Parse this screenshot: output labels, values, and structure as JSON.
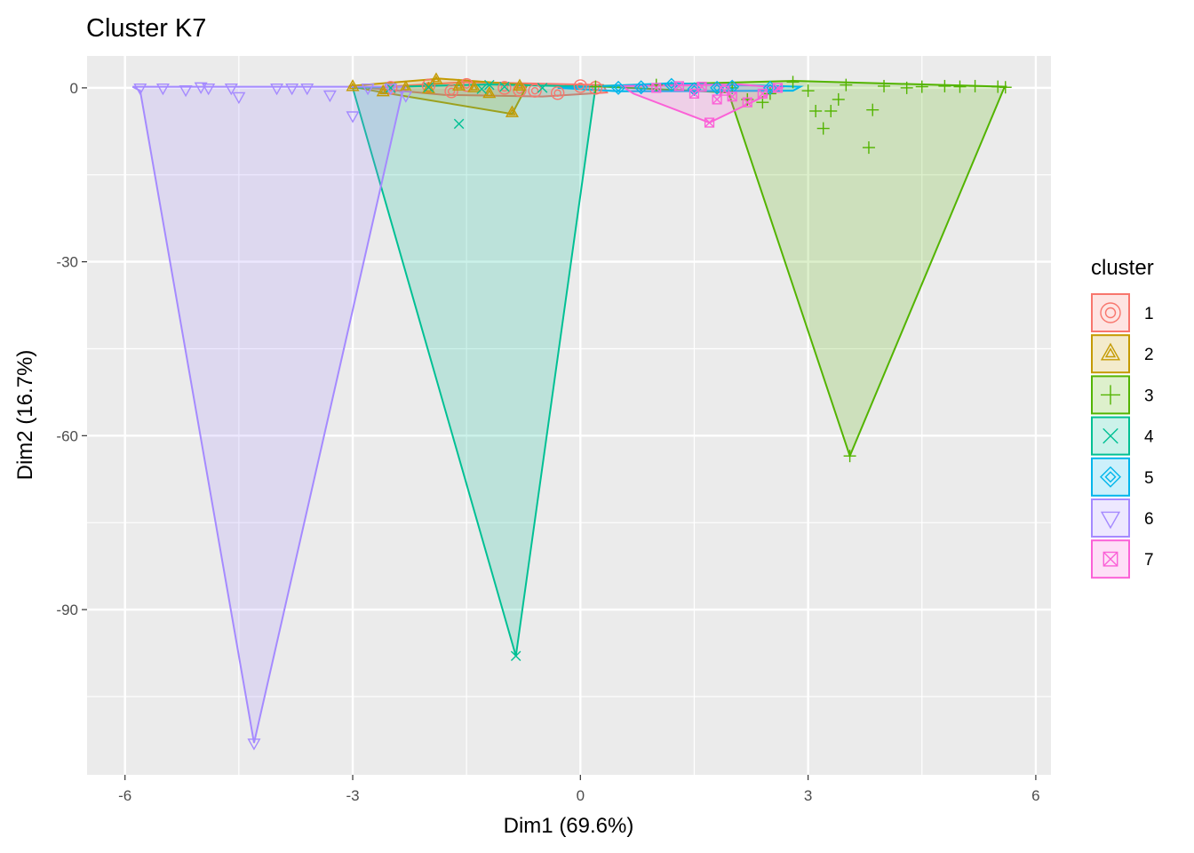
{
  "chart_data": {
    "type": "scatter",
    "title": "Cluster K7",
    "xlabel": "Dim1 (69.6%)",
    "ylabel": "Dim2 (16.7%)",
    "xlim": [
      -6.5,
      6.2
    ],
    "ylim": [
      -118.5,
      5.5
    ],
    "x_ticks": [
      -6,
      -3,
      0,
      3,
      6
    ],
    "x_tick_labels": [
      "-6",
      "-3",
      "0",
      "3",
      "6"
    ],
    "y_ticks": [
      0,
      -30,
      -60,
      -90
    ],
    "y_tick_labels": [
      "0",
      "-30",
      "-60",
      "-90"
    ],
    "grid": true,
    "legend": {
      "title": "cluster",
      "position": "right"
    },
    "series": [
      {
        "name": "1",
        "color": "#F8766D",
        "shape": "circle-ring",
        "hull": [
          [
            -2.8,
            0
          ],
          [
            -1.5,
            1.0
          ],
          [
            0.3,
            0.5
          ],
          [
            0.35,
            -0.8
          ],
          [
            -0.5,
            -1.5
          ],
          [
            -1.8,
            -1.2
          ]
        ],
        "points": [
          [
            -2.5,
            0
          ],
          [
            -2.0,
            0.4
          ],
          [
            -1.5,
            0.5
          ],
          [
            -1.0,
            0
          ],
          [
            -0.6,
            -0.5
          ],
          [
            -0.3,
            -0.9
          ],
          [
            0,
            0.3
          ],
          [
            0.2,
            0
          ],
          [
            -0.8,
            -0.4
          ],
          [
            -1.7,
            -0.6
          ]
        ]
      },
      {
        "name": "2",
        "color": "#C49A00",
        "shape": "triangle-nested",
        "hull": [
          [
            -3.05,
            0.3
          ],
          [
            -1.85,
            1.6
          ],
          [
            -0.7,
            0.5
          ],
          [
            -0.9,
            -4.5
          ],
          [
            -2.6,
            -0.8
          ]
        ],
        "points": [
          [
            -3.0,
            0.2
          ],
          [
            -2.6,
            -0.7
          ],
          [
            -2.3,
            0
          ],
          [
            -1.9,
            1.4
          ],
          [
            -1.6,
            0.3
          ],
          [
            -1.2,
            -1.0
          ],
          [
            -0.9,
            -4.3
          ],
          [
            -1.4,
            0
          ],
          [
            -2.0,
            -0.2
          ],
          [
            -0.8,
            0.3
          ]
        ]
      },
      {
        "name": "3",
        "color": "#53B400",
        "shape": "plus",
        "hull": [
          [
            0.15,
            0.3
          ],
          [
            2.8,
            1.2
          ],
          [
            5.6,
            0.2
          ],
          [
            5.58,
            -0.1
          ],
          [
            3.55,
            -63.5
          ],
          [
            1.95,
            -0.8
          ]
        ],
        "points": [
          [
            0.2,
            0.2
          ],
          [
            1.0,
            0.5
          ],
          [
            2.0,
            0
          ],
          [
            2.5,
            -1.0
          ],
          [
            2.8,
            1.0
          ],
          [
            3.0,
            -0.5
          ],
          [
            3.1,
            -4.0
          ],
          [
            3.2,
            -7.0
          ],
          [
            3.3,
            -4.0
          ],
          [
            3.55,
            -63.5
          ],
          [
            3.8,
            -10.3
          ],
          [
            3.85,
            -3.8
          ],
          [
            3.5,
            0.5
          ],
          [
            4.0,
            0.3
          ],
          [
            4.3,
            0
          ],
          [
            4.5,
            0.2
          ],
          [
            4.8,
            0.3
          ],
          [
            5.0,
            0.2
          ],
          [
            5.2,
            0.3
          ],
          [
            5.5,
            0.2
          ],
          [
            5.6,
            0.1
          ],
          [
            2.2,
            -2.0
          ],
          [
            2.4,
            -2.5
          ],
          [
            3.4,
            -2.0
          ]
        ]
      },
      {
        "name": "4",
        "color": "#00C094",
        "shape": "cross",
        "hull": [
          [
            -3.0,
            0
          ],
          [
            -1.2,
            0.6
          ],
          [
            0.2,
            0.2
          ],
          [
            -0.85,
            -98.0
          ]
        ],
        "points": [
          [
            -1.6,
            -6.2
          ],
          [
            -1.2,
            0.5
          ],
          [
            -0.85,
            -98.0
          ],
          [
            -2.5,
            0
          ],
          [
            -0.5,
            0
          ],
          [
            -1.0,
            0.2
          ],
          [
            -2.0,
            0.1
          ],
          [
            -1.3,
            -0.2
          ]
        ]
      },
      {
        "name": "5",
        "color": "#00B6EB",
        "shape": "diamond-nested",
        "hull": [
          [
            -0.3,
            0
          ],
          [
            1.2,
            0.8
          ],
          [
            2.9,
            0.2
          ],
          [
            2.8,
            -0.5
          ],
          [
            0.5,
            -0.6
          ]
        ],
        "points": [
          [
            1.2,
            0.5
          ],
          [
            0.5,
            0
          ],
          [
            1.5,
            -0.2
          ],
          [
            2.0,
            0.2
          ],
          [
            2.5,
            0
          ],
          [
            0.8,
            0.1
          ],
          [
            1.8,
            0
          ]
        ]
      },
      {
        "name": "6",
        "color": "#A58AFF",
        "shape": "triangle-down",
        "hull": [
          [
            -5.9,
            0.2
          ],
          [
            -2.3,
            0.2
          ],
          [
            -2.35,
            -1.0
          ],
          [
            -4.3,
            -113.0
          ],
          [
            -5.8,
            -0.5
          ]
        ],
        "points": [
          [
            -5.8,
            0
          ],
          [
            -5.5,
            0
          ],
          [
            -5.2,
            -0.3
          ],
          [
            -4.9,
            0
          ],
          [
            -4.6,
            0
          ],
          [
            -4.5,
            -1.5
          ],
          [
            -4.3,
            -113.0
          ],
          [
            -4.0,
            0
          ],
          [
            -3.6,
            0
          ],
          [
            -3.3,
            -1.2
          ],
          [
            -3.0,
            -4.8
          ],
          [
            -2.8,
            0
          ],
          [
            -2.5,
            0
          ],
          [
            -2.3,
            -1.3
          ],
          [
            -5.0,
            0.2
          ],
          [
            -3.8,
            0
          ]
        ]
      },
      {
        "name": "7",
        "color": "#FB61D7",
        "shape": "square-cross",
        "hull": [
          [
            0.55,
            0.3
          ],
          [
            2.1,
            0.6
          ],
          [
            2.65,
            0
          ],
          [
            1.7,
            -6.0
          ],
          [
            0.7,
            -1.0
          ]
        ],
        "points": [
          [
            1.7,
            -6.0
          ],
          [
            1.5,
            -1.0
          ],
          [
            1.8,
            -2.0
          ],
          [
            2.0,
            -1.5
          ],
          [
            2.2,
            -2.5
          ],
          [
            2.4,
            -1.0
          ],
          [
            1.0,
            0
          ],
          [
            1.3,
            0.3
          ],
          [
            2.6,
            0
          ],
          [
            1.6,
            0.2
          ],
          [
            1.9,
            -0.5
          ]
        ]
      }
    ]
  }
}
